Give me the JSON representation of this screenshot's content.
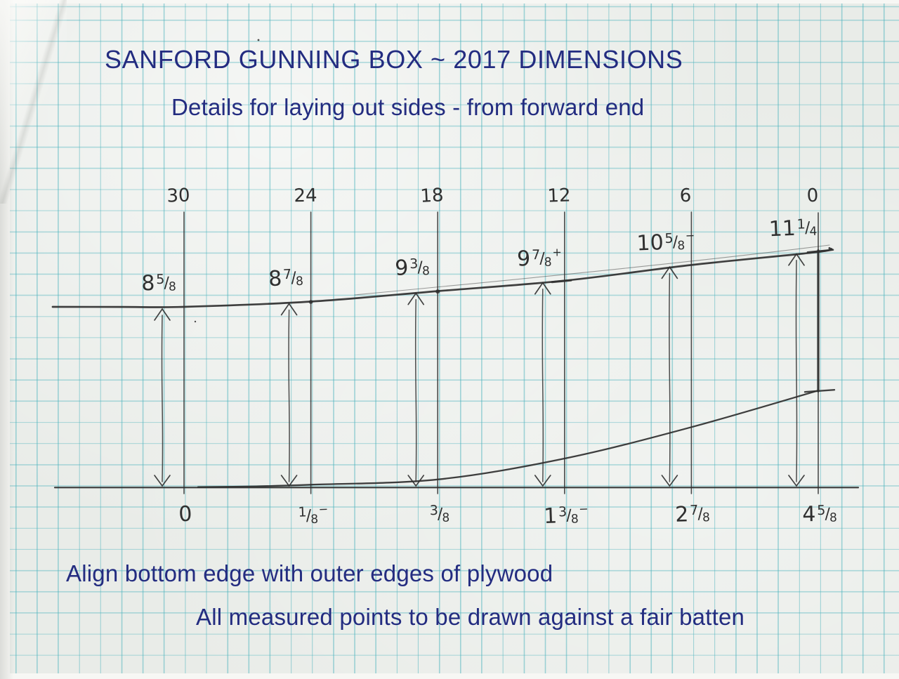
{
  "page": {
    "title": "SANFORD GUNNING BOX ~ 2017 DIMENSIONS",
    "subtitle": "Details for laying out sides - from forward end",
    "note1": "Align bottom edge with outer edges of plywood",
    "note2": "All measured points to be drawn against a fair batten"
  },
  "colors": {
    "heading": "#232c80",
    "pencil": "#2f2f2f",
    "grid": "#4ab2bc",
    "paper": "#e9ece8"
  },
  "diagram": {
    "unit": "inches",
    "station_spacing_in": 6,
    "stations": [
      {
        "axis": "30",
        "sheer_in": 8.625,
        "sheer_label": {
          "whole": "8",
          "num": "5",
          "den": "8",
          "suffix": ""
        },
        "rocker_in": 0,
        "rocker_label": {
          "whole": "0",
          "num": "",
          "den": "",
          "suffix": ""
        }
      },
      {
        "axis": "24",
        "sheer_in": 8.875,
        "sheer_label": {
          "whole": "8",
          "num": "7",
          "den": "8",
          "suffix": ""
        },
        "rocker_in": 0.125,
        "rocker_label": {
          "whole": "",
          "num": "1",
          "den": "8",
          "suffix": "−"
        }
      },
      {
        "axis": "18",
        "sheer_in": 9.375,
        "sheer_label": {
          "whole": "9",
          "num": "3",
          "den": "8",
          "suffix": ""
        },
        "rocker_in": 0.375,
        "rocker_label": {
          "whole": "",
          "num": "3",
          "den": "8",
          "suffix": ""
        }
      },
      {
        "axis": "12",
        "sheer_in": 9.875,
        "sheer_label": {
          "whole": "9",
          "num": "7",
          "den": "8",
          "suffix": "+"
        },
        "rocker_in": 1.375,
        "rocker_label": {
          "whole": "1",
          "num": "3",
          "den": "8",
          "suffix": "−"
        }
      },
      {
        "axis": "6",
        "sheer_in": 10.625,
        "sheer_label": {
          "whole": "10",
          "num": "5",
          "den": "8",
          "suffix": "−"
        },
        "rocker_in": 2.875,
        "rocker_label": {
          "whole": "2",
          "num": "7",
          "den": "8",
          "suffix": ""
        }
      },
      {
        "axis": "0",
        "sheer_in": 11.25,
        "sheer_label": {
          "whole": "11",
          "num": "1",
          "den": "4",
          "suffix": ""
        },
        "rocker_in": 4.625,
        "rocker_label": {
          "whole": "4",
          "num": "5",
          "den": "8",
          "suffix": ""
        }
      }
    ]
  }
}
